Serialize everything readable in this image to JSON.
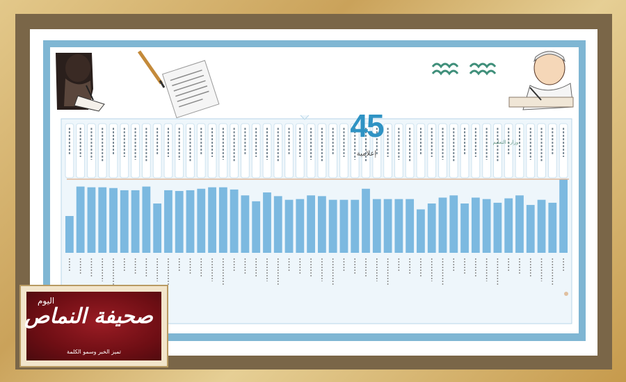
{
  "header": {
    "count": "45",
    "caption": "إعلامية",
    "ministry_name": "وزارة التعليم"
  },
  "logo": {
    "small": "اليوم",
    "title": "النماص",
    "word": "صحيفة",
    "tagline": "تميز الخبر وسمو الكلمة"
  },
  "colors": {
    "bar": "#7cb9e0",
    "header_number": "#2f93c4",
    "reference_line": "#e0b89a",
    "panel_border": "#7fb6d3"
  },
  "chart_data": {
    "type": "bar",
    "title": "",
    "xlabel": "",
    "ylabel": "",
    "reference_line": 100,
    "ylim": [
      0,
      100
    ],
    "values": [
      50,
      90,
      89,
      89,
      88,
      85,
      85,
      90,
      67,
      85,
      84,
      85,
      87,
      89,
      89,
      86,
      78,
      70,
      82,
      77,
      72,
      73,
      78,
      77,
      72,
      72,
      72,
      87,
      73,
      73,
      73,
      73,
      59,
      67,
      75,
      78,
      67,
      75,
      73,
      68,
      74,
      78,
      65,
      72,
      68,
      100
    ]
  }
}
